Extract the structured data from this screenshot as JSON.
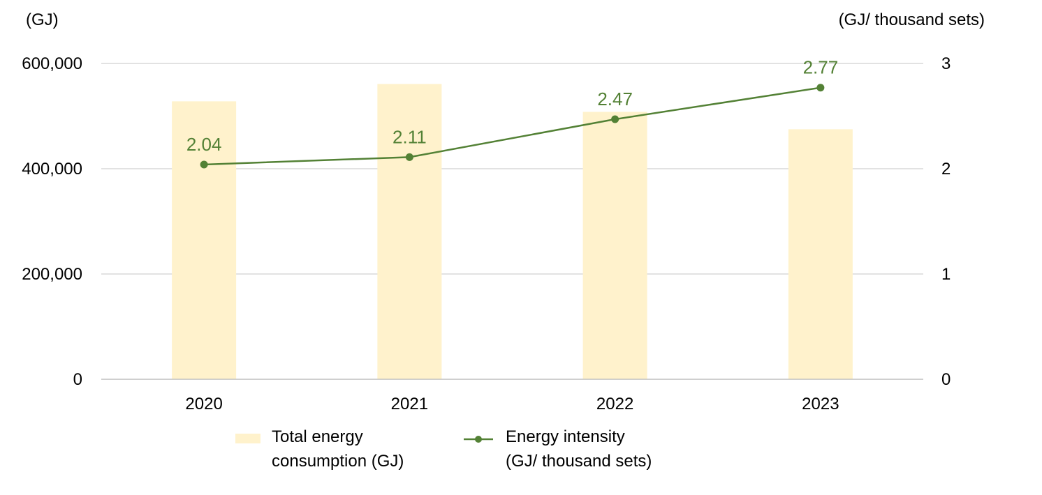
{
  "chart_data": {
    "type": "bar",
    "categories": [
      "2020",
      "2021",
      "2022",
      "2023"
    ],
    "left_axis": {
      "unit_label": "(GJ)",
      "ylim": [
        0,
        600000
      ],
      "ticks": [
        0,
        200000,
        400000,
        600000
      ],
      "tick_labels": [
        "0",
        "200,000",
        "400,000",
        "600,000"
      ]
    },
    "right_axis": {
      "unit_label": "(GJ/ thousand sets)",
      "ylim": [
        0,
        3
      ],
      "ticks": [
        0,
        1,
        2,
        3
      ],
      "tick_labels": [
        "0",
        "1",
        "2",
        "3"
      ]
    },
    "series": [
      {
        "name": "Total energy consumption (GJ)",
        "legend_lines": [
          "Total energy",
          "consumption (GJ)"
        ],
        "type": "bar",
        "axis": "left",
        "values": [
          528000,
          561000,
          508000,
          475000
        ],
        "color": "#FFF2CC"
      },
      {
        "name": "Energy intensity (GJ/ thousand sets)",
        "legend_lines": [
          "Energy intensity",
          "(GJ/ thousand sets)"
        ],
        "type": "line",
        "axis": "right",
        "values": [
          2.04,
          2.11,
          2.47,
          2.77
        ],
        "data_labels": [
          "2.04",
          "2.11",
          "2.47",
          "2.77"
        ],
        "color": "#538135"
      }
    ],
    "grid": true,
    "legend_position": "bottom"
  }
}
